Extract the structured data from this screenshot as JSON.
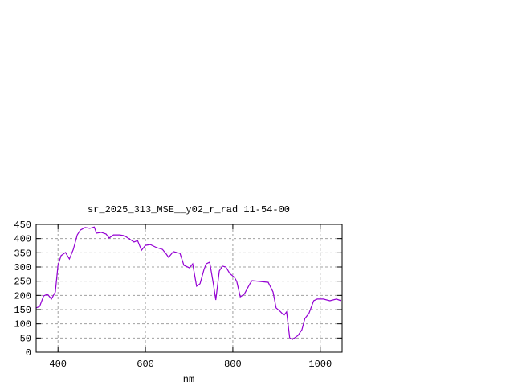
{
  "chart_data": {
    "type": "line",
    "title": "sr_2025_313_MSE__y02_r_rad 11-54-00",
    "xlabel": "nm",
    "ylabel": "",
    "xlim": [
      350,
      1050
    ],
    "ylim": [
      0,
      450
    ],
    "xticks": [
      400,
      600,
      800,
      1000
    ],
    "yticks": [
      0,
      50,
      100,
      150,
      200,
      250,
      300,
      350,
      400,
      450
    ],
    "grid": true,
    "line_color": "#9400d3",
    "grid_color": "#a0a0a0",
    "series": [
      {
        "x": [
          350,
          358,
          367,
          376,
          385,
          394,
          400,
          407,
          417,
          426,
          435,
          444,
          451,
          462,
          473,
          483,
          488,
          499,
          510,
          517,
          527,
          541,
          552,
          563,
          574,
          582,
          591,
          600,
          611,
          626,
          639,
          648,
          653,
          664,
          679,
          688,
          701,
          708,
          717,
          725,
          734,
          739,
          747,
          756,
          761,
          769,
          776,
          784,
          793,
          804,
          809,
          817,
          826,
          839,
          844,
          862,
          881,
          892,
          899,
          908,
          917,
          923,
          930,
          936,
          949,
          958,
          965,
          974,
          985,
          993,
          1007,
          1022,
          1037,
          1048
        ],
        "y": [
          156,
          161,
          198,
          204,
          187,
          212,
          306,
          340,
          351,
          328,
          362,
          413,
          430,
          439,
          436,
          441,
          419,
          422,
          416,
          402,
          413,
          413,
          410,
          399,
          388,
          393,
          359,
          376,
          379,
          368,
          362,
          345,
          334,
          354,
          348,
          306,
          297,
          311,
          232,
          241,
          291,
          311,
          317,
          235,
          184,
          286,
          303,
          300,
          277,
          263,
          249,
          195,
          204,
          241,
          252,
          249,
          246,
          212,
          156,
          144,
          130,
          142,
          51,
          45,
          59,
          79,
          119,
          136,
          181,
          187,
          187,
          181,
          187,
          181
        ]
      }
    ]
  }
}
